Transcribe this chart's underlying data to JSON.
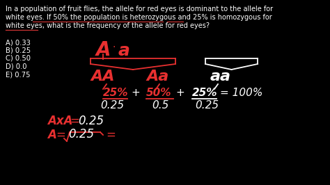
{
  "bg_color": "#000000",
  "text_color": "#ffffff",
  "red_color": "#e83030",
  "orange_color": "#cc4444",
  "figsize": [
    4.74,
    2.66
  ],
  "dpi": 100,
  "q_line1": "In a population of fruit flies, the allele for red eyes is dominant to the allele for",
  "q_line2": "white eyes. If 50% the population is heterozygous and 25% is homozygous for",
  "q_line3": "white eyes, what is the frequency of the allele for red eyes?",
  "options": [
    "A) 0.33",
    "B) 0.25",
    "C) 0.50",
    "D) 0.0",
    "E) 0.75"
  ]
}
